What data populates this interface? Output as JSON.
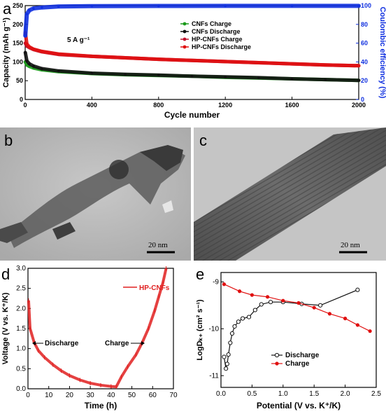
{
  "panels": {
    "a": "a",
    "b": "b",
    "c": "c",
    "d": "d",
    "e": "e"
  },
  "tem_b": {
    "scale_label": "20 nm"
  },
  "tem_c": {
    "scale_label": "20 nm"
  },
  "chart_data": [
    {
      "id": "a",
      "type": "scatter",
      "xlabel": "Cycle number",
      "ylabel": "Capacity (mAh g⁻¹)",
      "y2label": "Coulombic efficiency (%)",
      "annotation": "5 A g⁻¹",
      "xlim": [
        0,
        2000
      ],
      "ylim": [
        0,
        250
      ],
      "y2lim": [
        0,
        100
      ],
      "xticks": [
        0,
        400,
        800,
        1200,
        1600,
        2000
      ],
      "yticks": [
        0,
        50,
        100,
        150,
        200,
        250
      ],
      "y2ticks": [
        0,
        20,
        40,
        60,
        80,
        100
      ],
      "legend_position": "top-center",
      "series": [
        {
          "name": "CNFs Charge",
          "axis": "left",
          "color": "#1a9a1a",
          "x": [
            1,
            10,
            25,
            50,
            100,
            200,
            400,
            600,
            800,
            1000,
            1200,
            1400,
            1600,
            1800,
            2000
          ],
          "y": [
            100,
            92,
            88,
            84,
            79,
            74,
            69,
            66,
            64,
            62,
            59,
            57,
            55,
            53,
            51
          ]
        },
        {
          "name": "CNFs Discharge",
          "axis": "left",
          "color": "#111111",
          "x": [
            1,
            10,
            25,
            50,
            100,
            200,
            400,
            600,
            800,
            1000,
            1200,
            1400,
            1600,
            1800,
            2000
          ],
          "y": [
            125,
            103,
            95,
            89,
            82,
            76,
            70,
            67,
            65,
            62,
            60,
            58,
            55,
            53,
            51
          ]
        },
        {
          "name": "HP-CNFs Charge",
          "axis": "left",
          "color": "#c0102a",
          "x": [
            1,
            10,
            25,
            50,
            100,
            200,
            400,
            600,
            800,
            1000,
            1200,
            1400,
            1600,
            1800,
            2000
          ],
          "y": [
            150,
            142,
            138,
            133,
            127,
            120,
            115,
            111,
            107,
            104,
            101,
            98,
            95,
            92,
            90
          ]
        },
        {
          "name": "HP-CNFs Discharge",
          "axis": "left",
          "color": "#e01010",
          "x": [
            1,
            10,
            25,
            50,
            100,
            200,
            400,
            600,
            800,
            1000,
            1200,
            1400,
            1600,
            1800,
            2000
          ],
          "y": [
            178,
            148,
            140,
            134,
            128,
            121,
            115,
            111,
            107,
            104,
            101,
            98,
            95,
            92,
            90
          ]
        },
        {
          "name": "",
          "axis": "right",
          "color": "#1030e0",
          "x": [
            1,
            10,
            25,
            50,
            100,
            200,
            400,
            800,
            1200,
            1600,
            2000
          ],
          "y": [
            68,
            91,
            95,
            97,
            98,
            99,
            99.5,
            99.6,
            99.7,
            99.7,
            99.7
          ]
        }
      ]
    },
    {
      "id": "d",
      "type": "line",
      "xlabel": "Time (h)",
      "ylabel": "Voltage (V vs. K⁺/K)",
      "xlim": [
        0,
        70
      ],
      "ylim": [
        0,
        3.0
      ],
      "xticks": [
        0,
        10,
        20,
        30,
        40,
        50,
        60,
        70
      ],
      "yticks": [
        0.0,
        0.5,
        1.0,
        1.5,
        2.0,
        2.5,
        3.0
      ],
      "legend_position": "top-right",
      "annotations": [
        "Discharge",
        "Charge"
      ],
      "series": [
        {
          "name": "HP-CNFs",
          "color": "#e02020",
          "x": [
            0.3,
            1,
            3,
            5,
            8,
            12,
            16,
            20,
            25,
            30,
            35,
            40,
            42.5,
            45,
            48,
            52,
            55,
            58,
            61,
            63,
            65,
            66.5
          ],
          "y": [
            2.2,
            1.5,
            1.15,
            0.95,
            0.78,
            0.6,
            0.45,
            0.33,
            0.22,
            0.14,
            0.09,
            0.06,
            0.05,
            0.3,
            0.55,
            0.85,
            1.15,
            1.5,
            1.95,
            2.3,
            2.65,
            3.0
          ]
        }
      ]
    },
    {
      "id": "e",
      "type": "line",
      "xlabel": "Potential (V vs. K⁺/K)",
      "ylabel": "LogDₖ₊ (cm² s⁻¹)",
      "xlim": [
        0,
        2.5
      ],
      "ylim": [
        -11.25,
        -8.8
      ],
      "xticks": [
        0.0,
        0.5,
        1.0,
        1.5,
        2.0,
        2.5
      ],
      "yticks": [
        -11,
        -10,
        -9
      ],
      "legend_position": "bottom-center",
      "series": [
        {
          "name": "Discharge",
          "color": "#111111",
          "x": [
            0.05,
            0.08,
            0.1,
            0.12,
            0.15,
            0.18,
            0.22,
            0.28,
            0.35,
            0.45,
            0.55,
            0.65,
            0.8,
            1.0,
            1.3,
            1.6,
            2.2
          ],
          "y": [
            -10.6,
            -10.85,
            -10.75,
            -10.55,
            -10.3,
            -10.1,
            -9.95,
            -9.85,
            -9.78,
            -9.75,
            -9.6,
            -9.48,
            -9.43,
            -9.43,
            -9.47,
            -9.5,
            -9.17
          ]
        },
        {
          "name": "Charge",
          "color": "#e01010",
          "x": [
            0.05,
            0.3,
            0.5,
            0.75,
            1.0,
            1.25,
            1.5,
            1.75,
            2.0,
            2.2,
            2.4
          ],
          "y": [
            -9.05,
            -9.2,
            -9.28,
            -9.32,
            -9.4,
            -9.45,
            -9.55,
            -9.68,
            -9.78,
            -9.92,
            -10.05
          ]
        }
      ]
    }
  ]
}
